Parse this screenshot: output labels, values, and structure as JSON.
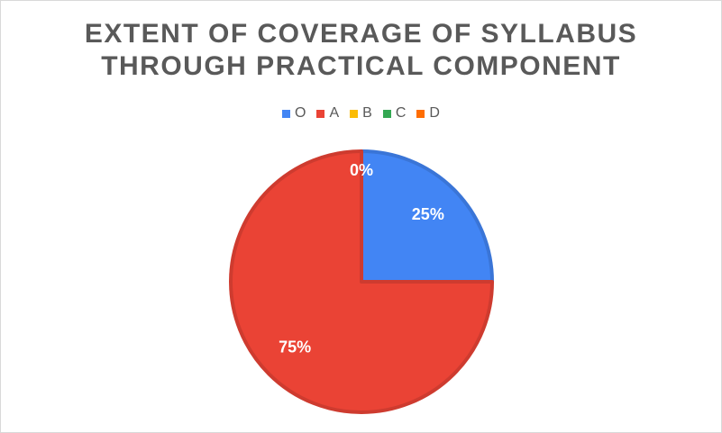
{
  "chart_data": {
    "type": "pie",
    "title_lines": [
      "EXTENT OF COVERAGE OF SYLLABUS",
      "THROUGH PRACTICAL COMPONENT"
    ],
    "categories": [
      "O",
      "A",
      "B",
      "C",
      "D"
    ],
    "values": [
      25,
      75,
      0,
      0,
      0
    ],
    "data_labels": [
      "25%",
      "75%",
      "0%",
      "0%",
      "0%"
    ],
    "colors": [
      "#4285f4",
      "#ea4335",
      "#fbbc04",
      "#34a853",
      "#ff6d01"
    ],
    "legend_position": "top"
  }
}
